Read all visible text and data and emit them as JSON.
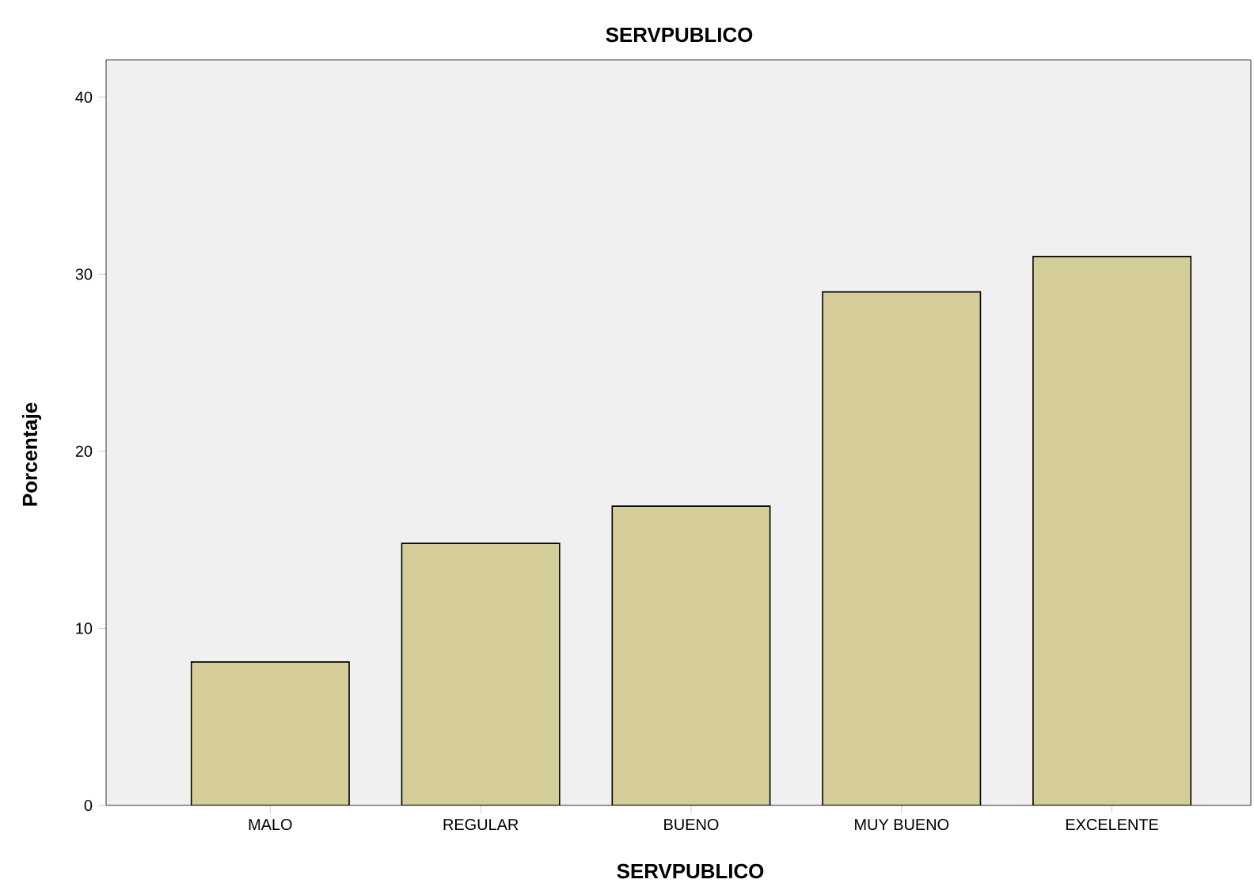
{
  "chart_data": {
    "type": "bar",
    "title": "SERVPUBLICO",
    "xlabel": "SERVPUBLICO",
    "ylabel": "Porcentaje",
    "categories": [
      "MALO",
      "REGULAR",
      "BUENO",
      "MUY BUENO",
      "EXCELENTE"
    ],
    "values": [
      8.1,
      14.8,
      16.9,
      29.0,
      31.0
    ],
    "color": "#d4cd98",
    "ylim": [
      0,
      42.1
    ],
    "yticks": [
      0,
      10,
      20,
      30,
      40
    ]
  }
}
